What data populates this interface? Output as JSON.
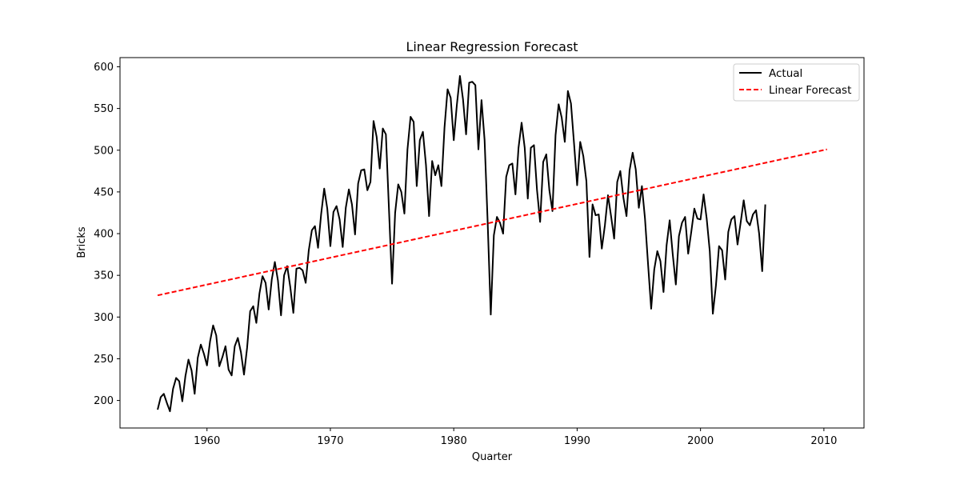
{
  "chart_data": {
    "type": "line",
    "title": "Linear Regression Forecast",
    "xlabel": "Quarter",
    "ylabel": "Bricks",
    "xlim": [
      1952.95,
      2013.25
    ],
    "ylim": [
      167,
      611
    ],
    "xticks": [
      1960,
      1970,
      1980,
      1990,
      2000,
      2010
    ],
    "yticks": [
      200,
      250,
      300,
      350,
      400,
      450,
      500,
      550,
      600
    ],
    "grid": false,
    "legend_position": "top-right",
    "series": [
      {
        "name": "Actual",
        "color": "#000000",
        "style": "solid",
        "x_start": 1956.0,
        "x_step": 0.25,
        "values": [
          189,
          204,
          208,
          197,
          187,
          214,
          227,
          223,
          199,
          229,
          249,
          236,
          208,
          251,
          267,
          256,
          242,
          271,
          290,
          278,
          241,
          252,
          265,
          237,
          230,
          265,
          275,
          258,
          231,
          263,
          307,
          313,
          293,
          328,
          349,
          341,
          309,
          345,
          366,
          344,
          302,
          350,
          361,
          336,
          305,
          358,
          359,
          356,
          341,
          380,
          404,
          409,
          383,
          423,
          454,
          430,
          385,
          426,
          433,
          417,
          384,
          431,
          453,
          435,
          399,
          460,
          476,
          477,
          452,
          462,
          535,
          516,
          478,
          526,
          519,
          429,
          340,
          425,
          459,
          450,
          424,
          501,
          540,
          534,
          457,
          512,
          522,
          482,
          421,
          487,
          470,
          482,
          457,
          527,
          573,
          563,
          512,
          554,
          589,
          561,
          519,
          581,
          582,
          578,
          501,
          560,
          512,
          413,
          303,
          398,
          420,
          413,
          400,
          468,
          482,
          484,
          447,
          503,
          533,
          503,
          442,
          503,
          506,
          452,
          414,
          486,
          495,
          452,
          427,
          518,
          555,
          539,
          510,
          571,
          556,
          508,
          458,
          510,
          493,
          463,
          372,
          435,
          422,
          423,
          382,
          410,
          446,
          421,
          394,
          462,
          475,
          443,
          421,
          476,
          497,
          477,
          431,
          457,
          418,
          363,
          310,
          357,
          379,
          367,
          330,
          386,
          416,
          375,
          339,
          397,
          413,
          420,
          376,
          402,
          430,
          418,
          417,
          447,
          418,
          379,
          304,
          338,
          385,
          380,
          345,
          402,
          417,
          421,
          387,
          413,
          440,
          415,
          410,
          423,
          428,
          400,
          355,
          435
        ]
      },
      {
        "name": "Linear Forecast",
        "color": "#ff0000",
        "style": "dashed",
        "x": [
          1956.0,
          2010.25
        ],
        "values": [
          326,
          501
        ]
      }
    ]
  }
}
